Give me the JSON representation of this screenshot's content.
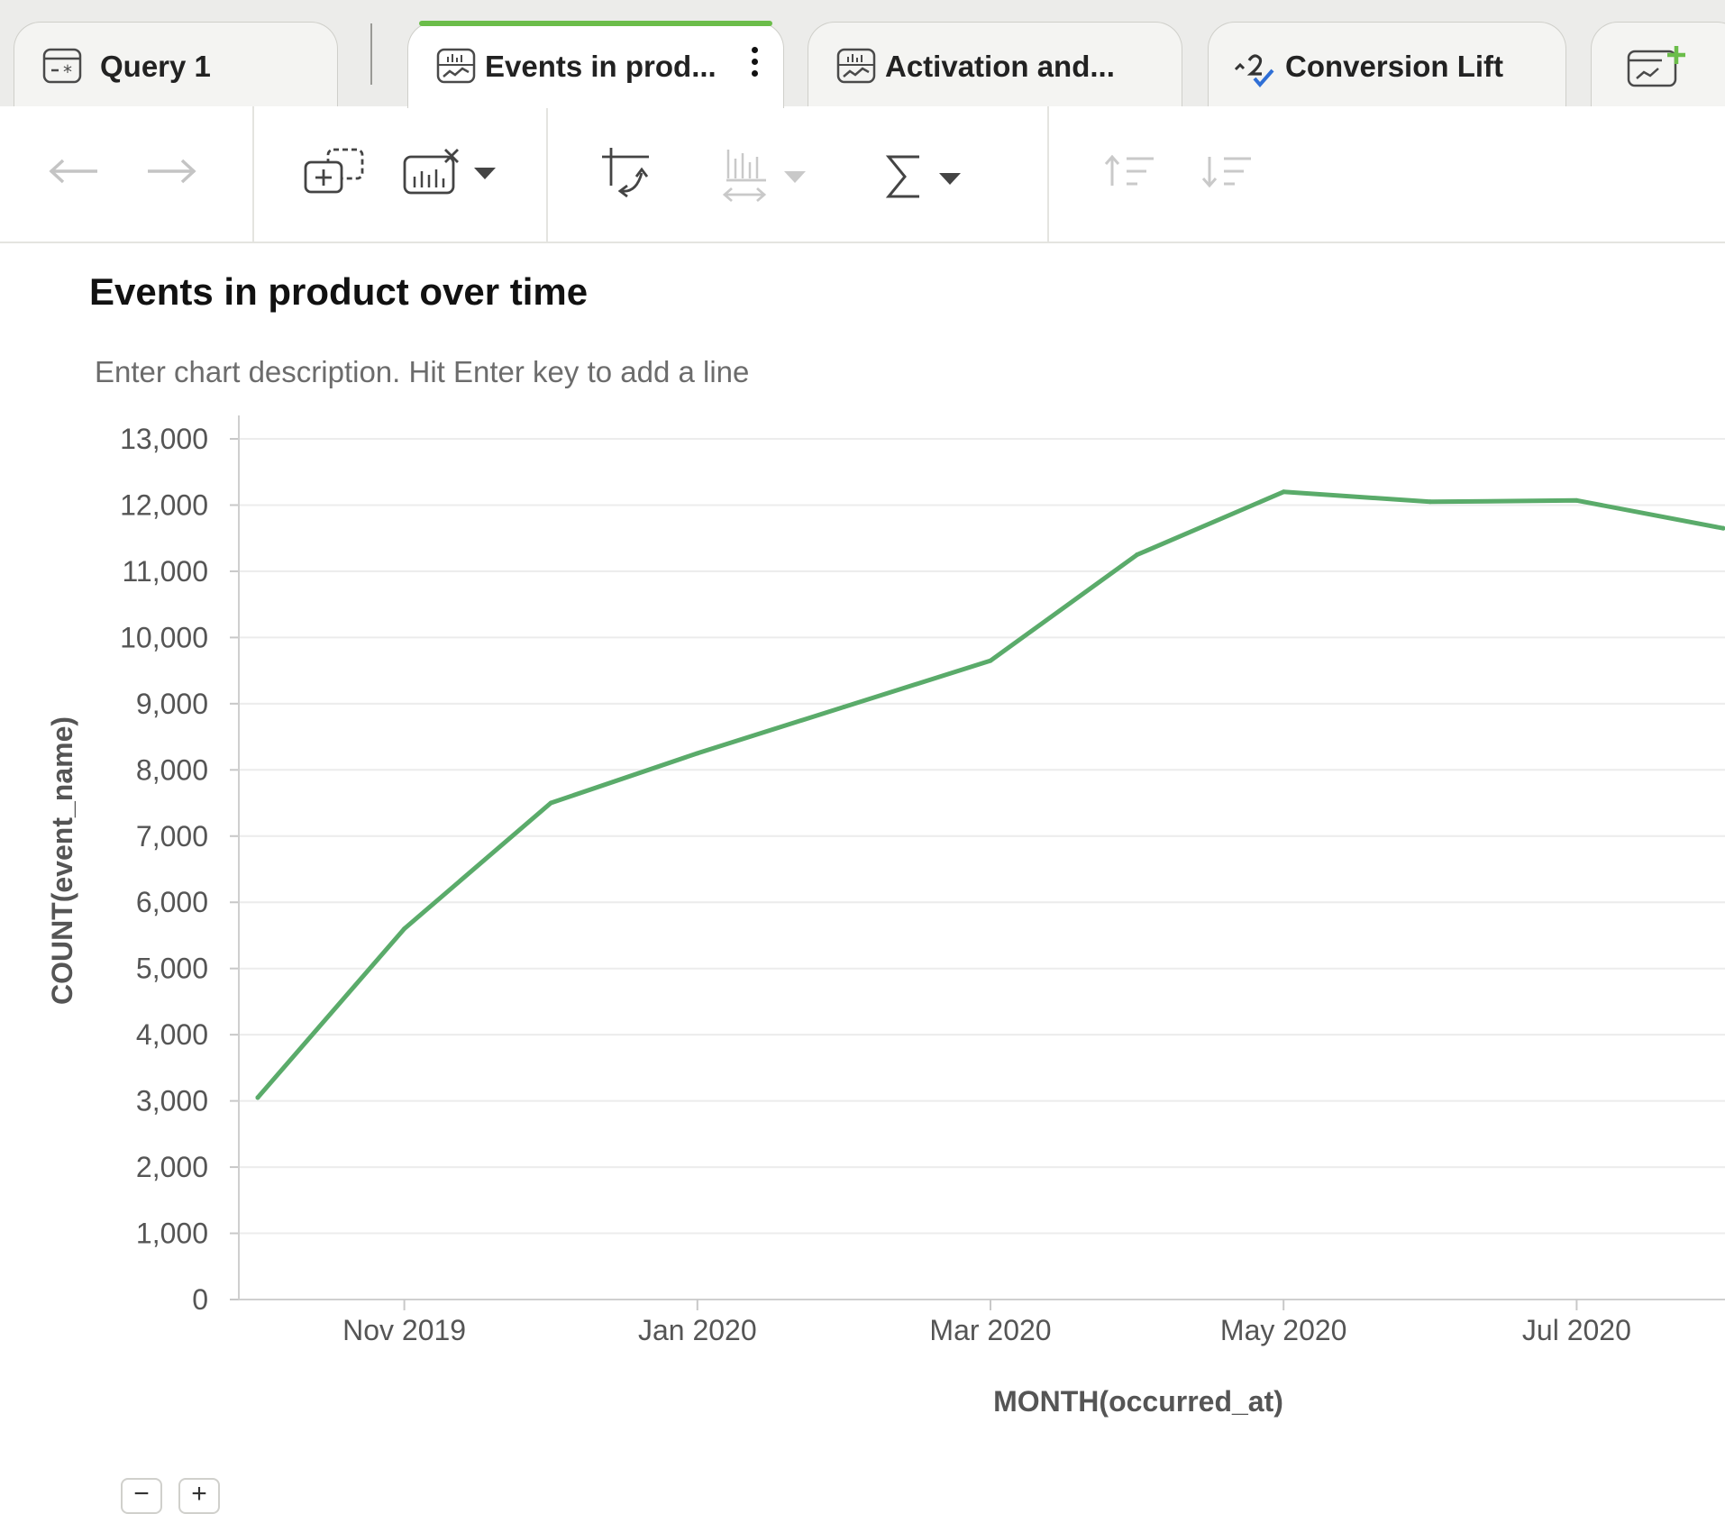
{
  "tabs": [
    {
      "label": "Query 1",
      "icon": "query-icon",
      "active": false
    },
    {
      "label": "Events in prod...",
      "icon": "chart-icon",
      "active": true
    },
    {
      "label": "Activation and...",
      "icon": "chart-icon",
      "active": false
    },
    {
      "label": "Conversion Lift",
      "icon": "conversion-lift-icon",
      "active": false
    }
  ],
  "new_tab_icon": "new-chart-icon",
  "toolbar": {
    "buttons": [
      {
        "name": "back-arrow-icon",
        "enabled": false
      },
      {
        "name": "forward-arrow-icon",
        "enabled": false
      },
      {
        "name": "add-series-icon",
        "enabled": true
      },
      {
        "name": "chart-clear-icon",
        "enabled": true
      },
      {
        "name": "swap-axes-icon",
        "enabled": true
      },
      {
        "name": "chart-range-icon",
        "enabled": false
      },
      {
        "name": "sigma-icon",
        "enabled": true
      },
      {
        "name": "sort-ascending-icon",
        "enabled": false
      },
      {
        "name": "sort-descending-icon",
        "enabled": false
      }
    ]
  },
  "chart": {
    "title": "Events in product over time",
    "description_placeholder": "Enter chart description. Hit Enter key to add a line"
  },
  "chart_data": {
    "type": "line",
    "xlabel": "MONTH(occurred_at)",
    "ylabel": "COUNT(event_name)",
    "ylim": [
      0,
      13000
    ],
    "y_ticks": [
      "0",
      "1,000",
      "2,000",
      "3,000",
      "4,000",
      "5,000",
      "6,000",
      "7,000",
      "8,000",
      "9,000",
      "10,000",
      "11,000",
      "12,000",
      "13,000"
    ],
    "x_ticks": [
      "Nov 2019",
      "Jan 2020",
      "Mar 2020",
      "May 2020",
      "Jul 2020"
    ],
    "x": [
      "2019-10",
      "2019-11",
      "2019-12",
      "2020-01",
      "2020-02",
      "2020-03",
      "2020-04",
      "2020-05",
      "2020-06",
      "2020-07",
      "2020-08"
    ],
    "values": [
      3050,
      5600,
      7500,
      8250,
      8950,
      9650,
      11250,
      12200,
      12050,
      12070,
      11650
    ],
    "grid": true,
    "line_color": "#5aab6a"
  },
  "bottom_controls": [
    "−",
    "+"
  ]
}
